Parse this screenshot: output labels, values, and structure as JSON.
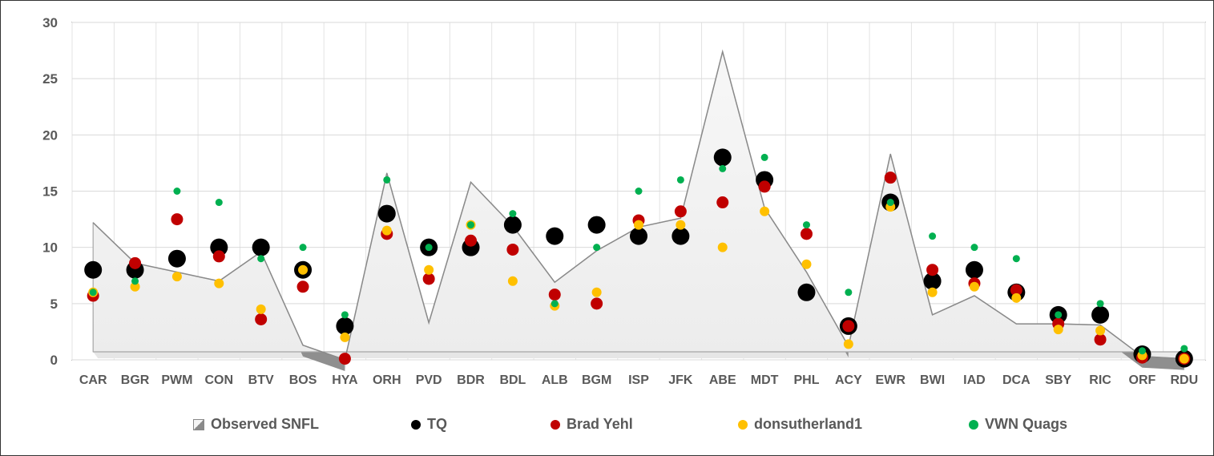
{
  "chart_data": {
    "type": "area",
    "y_axis": {
      "min": 0,
      "max": 30,
      "ticks": [
        "0",
        "5",
        "10",
        "15",
        "20",
        "25",
        "30"
      ]
    },
    "grid": true,
    "legend_position": "bottom",
    "categories": [
      "CAR",
      "BGR",
      "PWM",
      "CON",
      "BTV",
      "BOS",
      "HYA",
      "ORH",
      "PVD",
      "BDR",
      "BDL",
      "ALB",
      "BGM",
      "ISP",
      "JFK",
      "ABE",
      "MDT",
      "PHL",
      "ACY",
      "EWR",
      "BWI",
      "IAD",
      "DCA",
      "SBY",
      "RIC",
      "ORF",
      "RDU"
    ],
    "series": [
      {
        "name": "Observed SNFL",
        "kind": "area",
        "color": "#8c8c8c",
        "values": [
          12.2,
          8.6,
          7.8,
          7.0,
          9.6,
          1.3,
          0.0,
          16.6,
          3.3,
          15.8,
          11.9,
          6.9,
          9.7,
          11.8,
          12.6,
          27.4,
          13.5,
          7.8,
          1.2,
          18.3,
          4.0,
          5.7,
          3.2,
          3.2,
          3.1,
          0.3,
          0.1
        ]
      },
      {
        "name": "TQ",
        "kind": "dot",
        "color": "#000000",
        "size": 11,
        "values": [
          8,
          8,
          9,
          10,
          10,
          8,
          3,
          13,
          10,
          10,
          12,
          11,
          12,
          11,
          11,
          18,
          16,
          6,
          3,
          14,
          7,
          8,
          6,
          4,
          4,
          0.5,
          0.1
        ]
      },
      {
        "name": "Brad Yehl",
        "kind": "dot",
        "color": "#c00000",
        "size": 7.5,
        "values": [
          5.7,
          8.6,
          12.5,
          9.2,
          3.6,
          6.5,
          0.1,
          11.2,
          7.2,
          10.6,
          9.8,
          5.8,
          5.0,
          12.4,
          13.2,
          14.0,
          15.4,
          11.2,
          3.0,
          16.2,
          8.0,
          6.8,
          6.2,
          3.2,
          1.8,
          0.2,
          0.1
        ]
      },
      {
        "name": "donsutherland1",
        "kind": "dot",
        "color": "#ffc000",
        "size": 6,
        "values": [
          6.0,
          6.5,
          7.4,
          6.8,
          4.5,
          8.0,
          2.0,
          11.5,
          8.0,
          12.0,
          7.0,
          4.8,
          6.0,
          12.0,
          12.0,
          10.0,
          13.2,
          8.5,
          1.4,
          13.6,
          6.0,
          6.5,
          5.5,
          2.7,
          2.6,
          0.4,
          0.1
        ]
      },
      {
        "name": "VWN Quags",
        "kind": "dot",
        "color": "#00b050",
        "size": 4.5,
        "values": [
          6,
          7,
          15,
          14,
          9,
          10,
          4,
          16,
          10,
          12,
          13,
          5,
          10,
          15,
          16,
          17,
          18,
          12,
          6,
          14,
          11,
          10,
          9,
          4,
          5,
          0.8,
          1.0
        ]
      }
    ]
  }
}
